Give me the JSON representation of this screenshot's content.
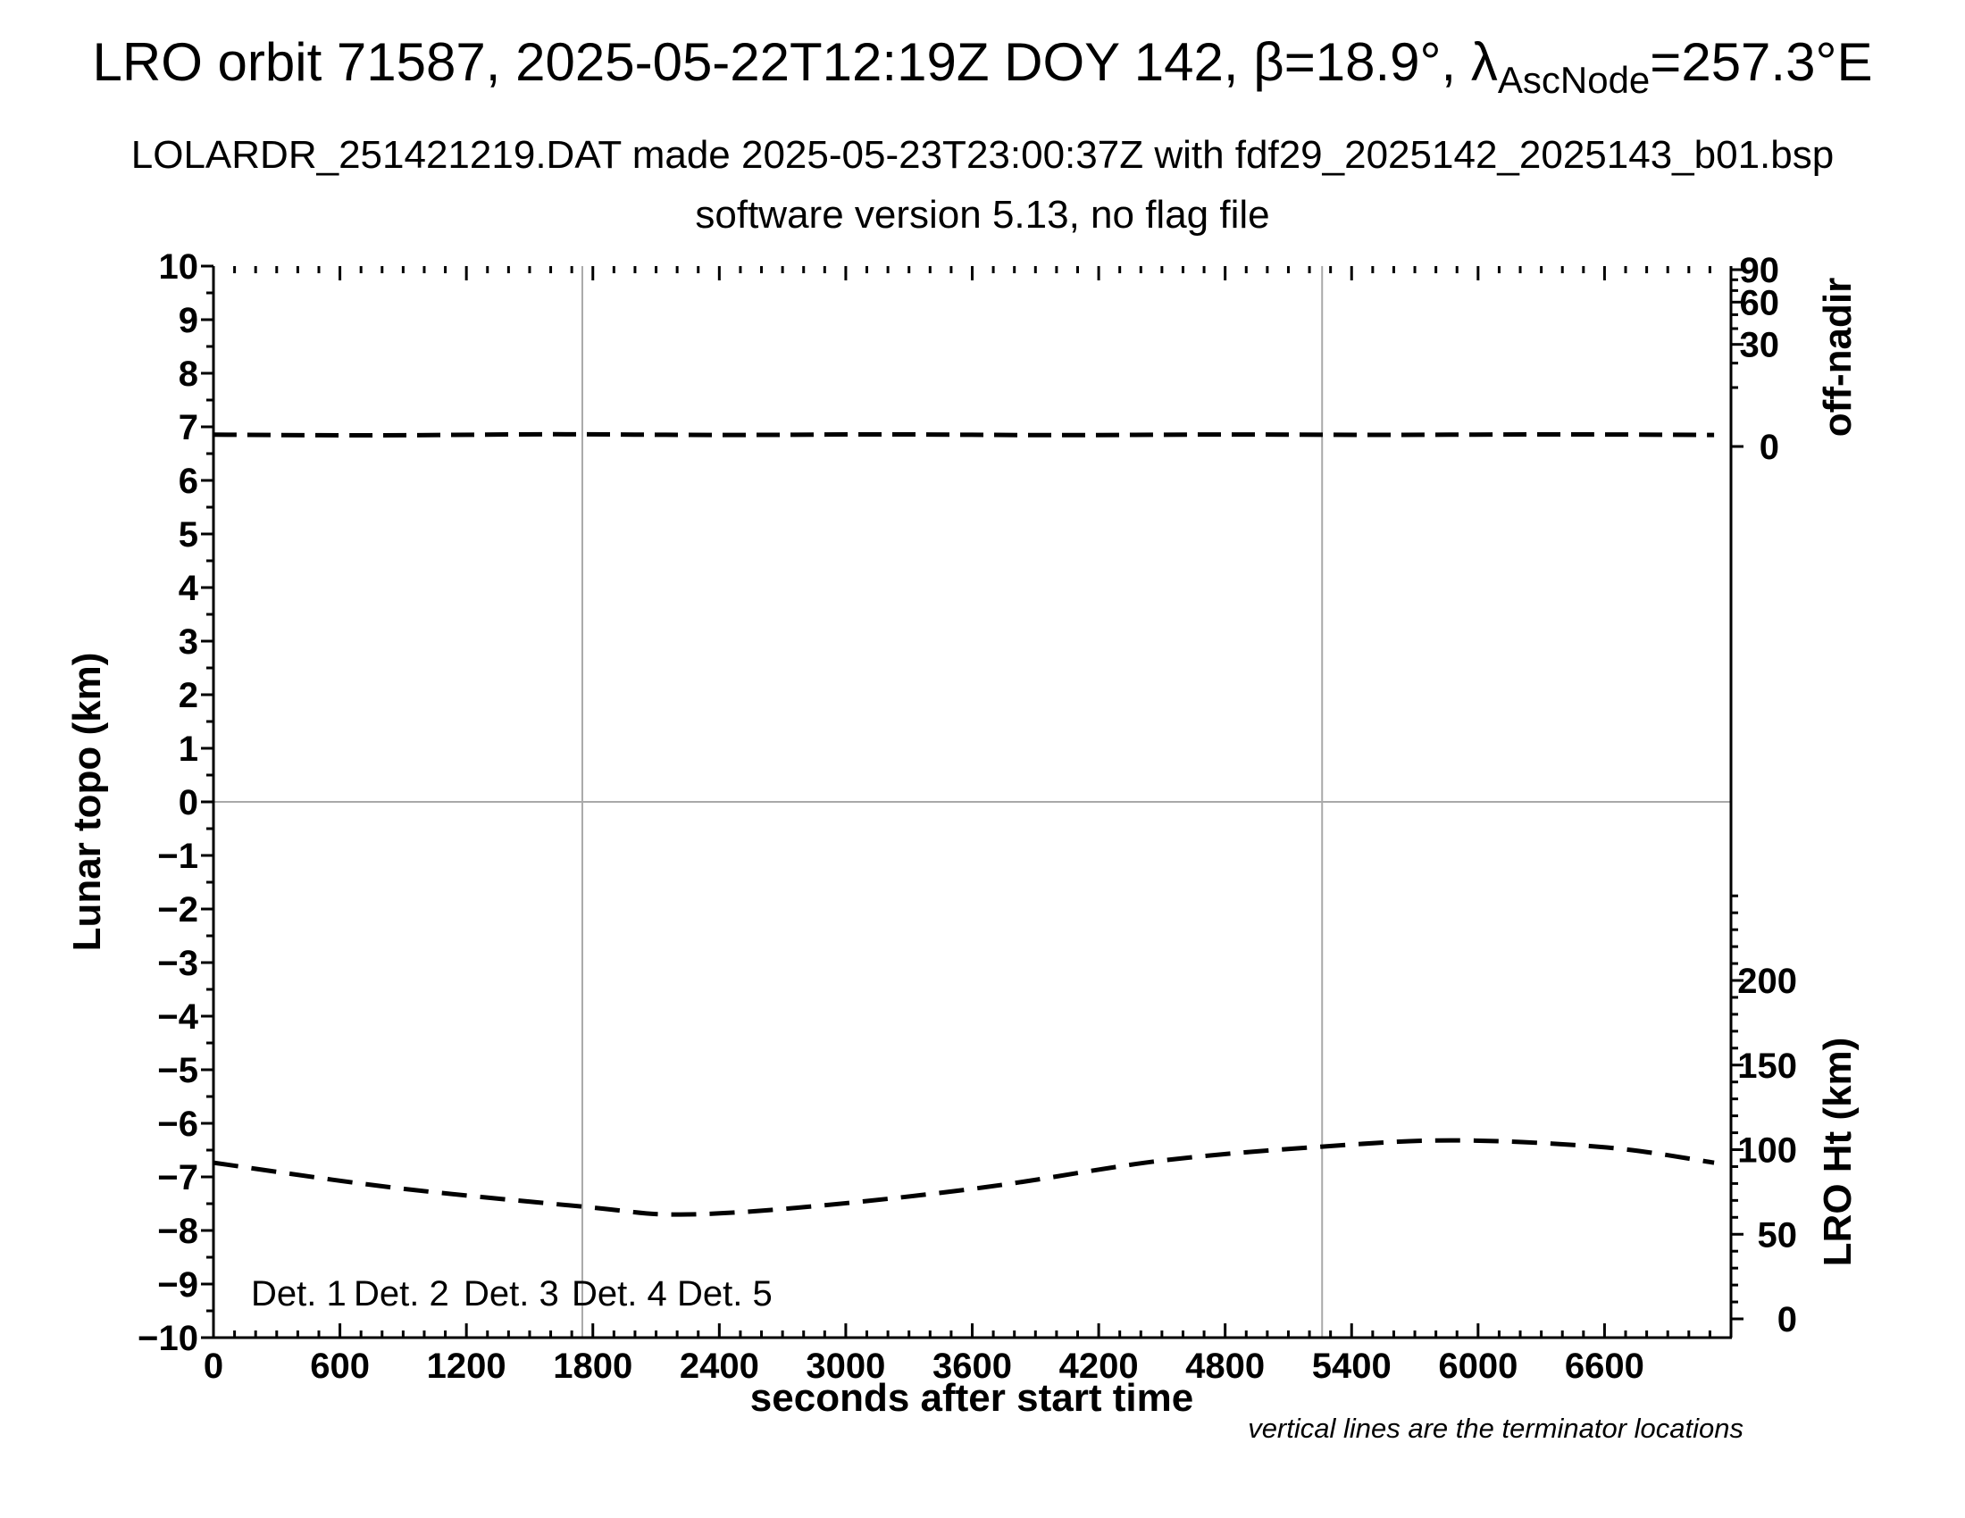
{
  "header": {
    "title_part1": "LRO orbit 71587, 2025-05-22T12:19Z DOY 142, β=18.9°, λ",
    "title_subscript": "AscNode",
    "title_part2": "=257.3°E",
    "subtitle": "LOLARDR_251421219.DAT made 2025-05-23T23:00:37Z with fdf29_2025142_2025143_b01.bsp",
    "subtitle2": "software version 5.13, no flag file"
  },
  "footnote": "vertical lines are the terminator locations",
  "colors": {
    "frame": "#000000",
    "gridline_gray": "#a9a9a9",
    "series_dash": "#000000"
  },
  "chart_data": {
    "type": "line",
    "title": "LRO orbit 71587, 2025-05-22T12:19Z DOY 142, β=18.9°, λAscNode=257.3°E",
    "x_axis": {
      "label": "seconds after start time",
      "range": [
        0,
        7200
      ],
      "major_tick_step": 600,
      "minor_tick_step": 100,
      "last_labeled_tick": 6600,
      "tick_labels": [
        "0",
        "600",
        "1200",
        "1800",
        "2400",
        "3000",
        "3600",
        "4200",
        "4800",
        "5400",
        "6000",
        "6600"
      ]
    },
    "y_axis_left": {
      "label": "Lunar topo (km)",
      "range": [
        -10,
        10
      ],
      "major_tick_step": 1,
      "minor_tick_step": 0.5,
      "tick_labels": [
        "10",
        "9",
        "8",
        "7",
        "6",
        "5",
        "4",
        "3",
        "2",
        "1",
        "0",
        "−1",
        "−2",
        "−3",
        "−4",
        "−5",
        "−6",
        "−7",
        "−8",
        "−9",
        "−10"
      ]
    },
    "y_axis_right_top": {
      "label": "off-nadir",
      "unit": "deg",
      "scale": "sqrt",
      "major_ticks": [
        90,
        60,
        30,
        0
      ],
      "minor_ticks": [
        80,
        70,
        50,
        40,
        20,
        10
      ],
      "tick_labels": [
        "90",
        "60",
        "30",
        "0"
      ]
    },
    "y_axis_right_bottom": {
      "label": "LRO Ht (km)",
      "range": [
        0,
        250
      ],
      "major_ticks": [
        200,
        150,
        100,
        50,
        0
      ],
      "minor_tick_step": 10,
      "tick_labels": [
        "200",
        "150",
        "100",
        "50",
        "0"
      ]
    },
    "terminator_lines_seconds": [
      1750,
      5260
    ],
    "topo_zero_line": 0,
    "grid": "off",
    "series": [
      {
        "name": "spacecraft off-nadir angle",
        "axis": "off_nadir",
        "style": "dashed",
        "color": "#000000",
        "points_t_deg": [
          [
            0,
            0.4
          ],
          [
            800,
            0.36
          ],
          [
            1600,
            0.43
          ],
          [
            2400,
            0.38
          ],
          [
            3200,
            0.42
          ],
          [
            4000,
            0.37
          ],
          [
            4800,
            0.41
          ],
          [
            5600,
            0.39
          ],
          [
            6400,
            0.42
          ],
          [
            7120,
            0.38
          ]
        ]
      },
      {
        "name": "LRO height above surface",
        "axis": "lro_ht",
        "style": "dashed",
        "color": "#000000",
        "points_t_km": [
          [
            0,
            92.3
          ],
          [
            850,
            77.6
          ],
          [
            1780,
            66.0
          ],
          [
            2200,
            61.7
          ],
          [
            2800,
            66.0
          ],
          [
            3650,
            77.6
          ],
          [
            4490,
            93.4
          ],
          [
            5260,
            101.8
          ],
          [
            5890,
            105.5
          ],
          [
            6610,
            101.3
          ],
          [
            7120,
            92.3
          ]
        ]
      }
    ],
    "legend": {
      "position": "bottom-left-inside",
      "items": [
        {
          "label": "Det. 1",
          "color": "#000000"
        },
        {
          "label": "Det. 2",
          "color": "#0000ff"
        },
        {
          "label": "Det. 3",
          "color": "#00dd00"
        },
        {
          "label": "Det. 4",
          "color": "#ffa500"
        },
        {
          "label": "Det. 5",
          "color": "#ff0000"
        }
      ]
    }
  }
}
